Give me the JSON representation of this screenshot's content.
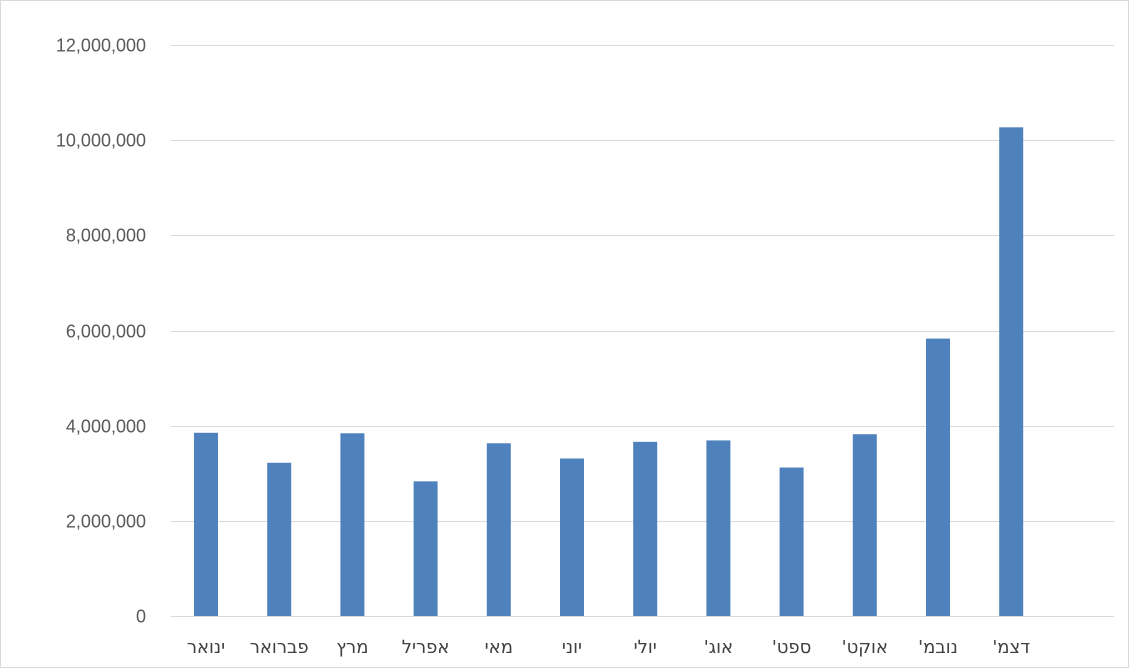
{
  "chart_data": {
    "type": "bar",
    "title": "",
    "xlabel": "",
    "ylabel": "",
    "categories": [
      "ינואר",
      "פברואר",
      "מרץ",
      "אפריל",
      "מאי",
      "יוני",
      "יולי",
      "אוג'",
      "ספט'",
      "אוקט'",
      "נובמ'",
      "דצמ'"
    ],
    "values": [
      3850000,
      3220000,
      3840000,
      2830000,
      3630000,
      3310000,
      3660000,
      3690000,
      3120000,
      3820000,
      5830000,
      10270000
    ],
    "ylim": [
      0,
      12000000
    ],
    "yticks": [
      0,
      2000000,
      4000000,
      6000000,
      8000000,
      10000000,
      12000000
    ],
    "ytick_labels": [
      "0",
      "2,000,000",
      "4,000,000",
      "6,000,000",
      "8,000,000",
      "10,000,000",
      "12,000,000"
    ],
    "grid": true,
    "legend": "none",
    "colors": {
      "bar": "#4f81bd",
      "grid": "#d9d9d9",
      "text": "#595959"
    }
  }
}
